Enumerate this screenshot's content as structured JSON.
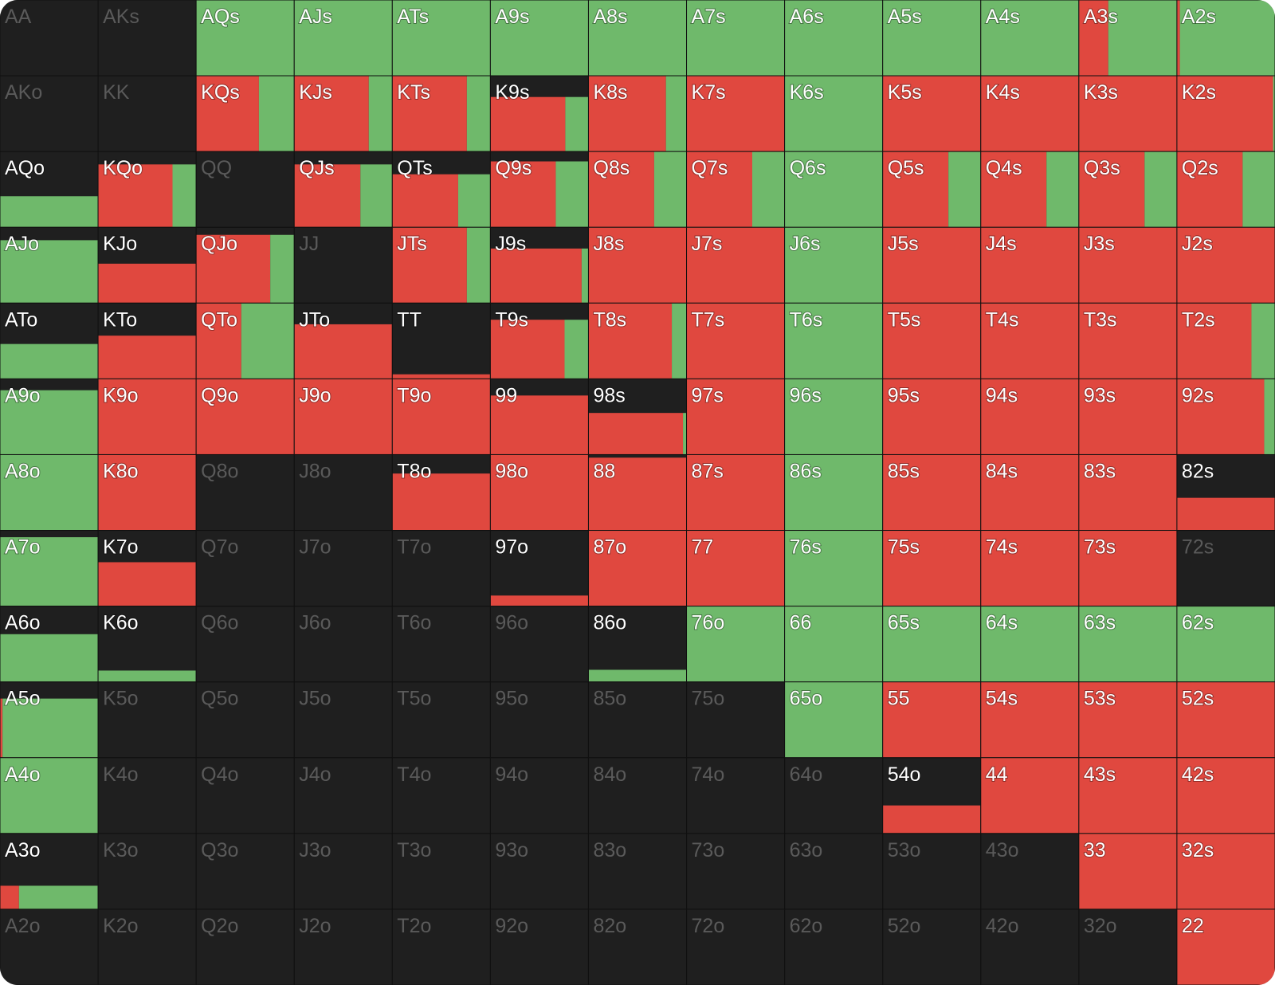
{
  "grid": {
    "labels": [
      [
        "AA",
        "AKs",
        "AQs",
        "AJs",
        "ATs",
        "A9s",
        "A8s",
        "A7s",
        "A6s",
        "A5s",
        "A4s",
        "A3s",
        "A2s"
      ],
      [
        "AKo",
        "KK",
        "KQs",
        "KJs",
        "KTs",
        "K9s",
        "K8s",
        "K7s",
        "K6s",
        "K5s",
        "K4s",
        "K3s",
        "K2s"
      ],
      [
        "AQo",
        "KQo",
        "QQ",
        "QJs",
        "QTs",
        "Q9s",
        "Q8s",
        "Q7s",
        "Q6s",
        "Q5s",
        "Q4s",
        "Q3s",
        "Q2s"
      ],
      [
        "AJo",
        "KJo",
        "QJo",
        "JJ",
        "JTs",
        "J9s",
        "J8s",
        "J7s",
        "J6s",
        "J5s",
        "J4s",
        "J3s",
        "J2s"
      ],
      [
        "ATo",
        "KTo",
        "QTo",
        "JTo",
        "TT",
        "T9s",
        "T8s",
        "T7s",
        "T6s",
        "T5s",
        "T4s",
        "T3s",
        "T2s"
      ],
      [
        "A9o",
        "K9o",
        "Q9o",
        "J9o",
        "T9o",
        "99",
        "98s",
        "97s",
        "96s",
        "95s",
        "94s",
        "93s",
        "92s"
      ],
      [
        "A8o",
        "K8o",
        "Q8o",
        "J8o",
        "T8o",
        "98o",
        "88",
        "87s",
        "86s",
        "85s",
        "84s",
        "83s",
        "82s"
      ],
      [
        "A7o",
        "K7o",
        "Q7o",
        "J7o",
        "T7o",
        "97o",
        "87o",
        "77",
        "76s",
        "75s",
        "74s",
        "73s",
        "72s"
      ],
      [
        "A6o",
        "K6o",
        "Q6o",
        "J6o",
        "T6o",
        "96o",
        "86o",
        "76o",
        "66",
        "65s",
        "64s",
        "63s",
        "62s"
      ],
      [
        "A5o",
        "K5o",
        "Q5o",
        "J5o",
        "T5o",
        "95o",
        "85o",
        "75o",
        "65o",
        "55",
        "54s",
        "53s",
        "52s"
      ],
      [
        "A4o",
        "K4o",
        "Q4o",
        "J4o",
        "T4o",
        "94o",
        "84o",
        "74o",
        "64o",
        "54o",
        "44",
        "43s",
        "42s"
      ],
      [
        "A3o",
        "K3o",
        "Q3o",
        "J3o",
        "T3o",
        "93o",
        "83o",
        "73o",
        "63o",
        "53o",
        "43o",
        "33",
        "32s"
      ],
      [
        "A2o",
        "K2o",
        "Q2o",
        "J2o",
        "T2o",
        "92o",
        "82o",
        "72o",
        "62o",
        "52o",
        "42o",
        "32o",
        "22"
      ]
    ],
    "red": [
      [
        0,
        0,
        0,
        0,
        0,
        0,
        0,
        0,
        0,
        0,
        0,
        30,
        3
      ],
      [
        0,
        0,
        64,
        76,
        76,
        55,
        79,
        100,
        0,
        100,
        100,
        100,
        98
      ],
      [
        0,
        63,
        0,
        56,
        47,
        58,
        67,
        67,
        0,
        67,
        67,
        67,
        67
      ],
      [
        0,
        52,
        68,
        0,
        76,
        67,
        100,
        100,
        0,
        100,
        100,
        100,
        100
      ],
      [
        0,
        57,
        46,
        72,
        6,
        59,
        85,
        100,
        0,
        100,
        100,
        100,
        76
      ],
      [
        0,
        100,
        100,
        100,
        100,
        78,
        53,
        100,
        0,
        100,
        100,
        100,
        89
      ],
      [
        0,
        100,
        0,
        0,
        75,
        100,
        96,
        100,
        0,
        100,
        100,
        100,
        43
      ],
      [
        0,
        58,
        0,
        0,
        0,
        14,
        100,
        100,
        0,
        100,
        100,
        100,
        0
      ],
      [
        0,
        0,
        0,
        0,
        0,
        0,
        0,
        0,
        0,
        0,
        0,
        0,
        0
      ],
      [
        2,
        0,
        0,
        0,
        0,
        0,
        0,
        0,
        0,
        100,
        100,
        100,
        100
      ],
      [
        0,
        0,
        0,
        0,
        0,
        0,
        0,
        0,
        0,
        37,
        100,
        100,
        100
      ],
      [
        6,
        0,
        0,
        0,
        0,
        0,
        0,
        0,
        0,
        0,
        0,
        100,
        100
      ],
      [
        0,
        0,
        0,
        0,
        0,
        0,
        0,
        0,
        0,
        0,
        0,
        0,
        100
      ]
    ],
    "green": [
      [
        0,
        0,
        100,
        100,
        100,
        100,
        100,
        100,
        100,
        100,
        100,
        70,
        97
      ],
      [
        0,
        0,
        36,
        24,
        24,
        17,
        21,
        0,
        100,
        0,
        0,
        0,
        2
      ],
      [
        41,
        20,
        0,
        27,
        23,
        29,
        33,
        33,
        100,
        33,
        33,
        33,
        33
      ],
      [
        83,
        0,
        22,
        0,
        24,
        5,
        0,
        0,
        100,
        0,
        0,
        0,
        0
      ],
      [
        46,
        0,
        54,
        0,
        0,
        19,
        15,
        0,
        100,
        0,
        0,
        0,
        24
      ],
      [
        85,
        0,
        0,
        0,
        0,
        0,
        2,
        0,
        100,
        0,
        0,
        0,
        11
      ],
      [
        100,
        0,
        0,
        0,
        0,
        0,
        0,
        0,
        100,
        0,
        0,
        0,
        0
      ],
      [
        91,
        0,
        0,
        0,
        0,
        0,
        0,
        0,
        100,
        0,
        0,
        0,
        0
      ],
      [
        63,
        15,
        0,
        0,
        0,
        0,
        16,
        100,
        100,
        100,
        100,
        100,
        100
      ],
      [
        76,
        0,
        0,
        0,
        0,
        0,
        0,
        0,
        100,
        0,
        0,
        0,
        0
      ],
      [
        100,
        0,
        0,
        0,
        0,
        0,
        0,
        0,
        0,
        0,
        0,
        0,
        0
      ],
      [
        25,
        0,
        0,
        0,
        0,
        0,
        0,
        0,
        0,
        0,
        0,
        0,
        0
      ],
      [
        0,
        0,
        0,
        0,
        0,
        0,
        0,
        0,
        0,
        0,
        0,
        0,
        0
      ]
    ],
    "colors": {
      "red": "#e0483f",
      "green": "#6fb96b",
      "background": "#1f1f1f"
    }
  }
}
